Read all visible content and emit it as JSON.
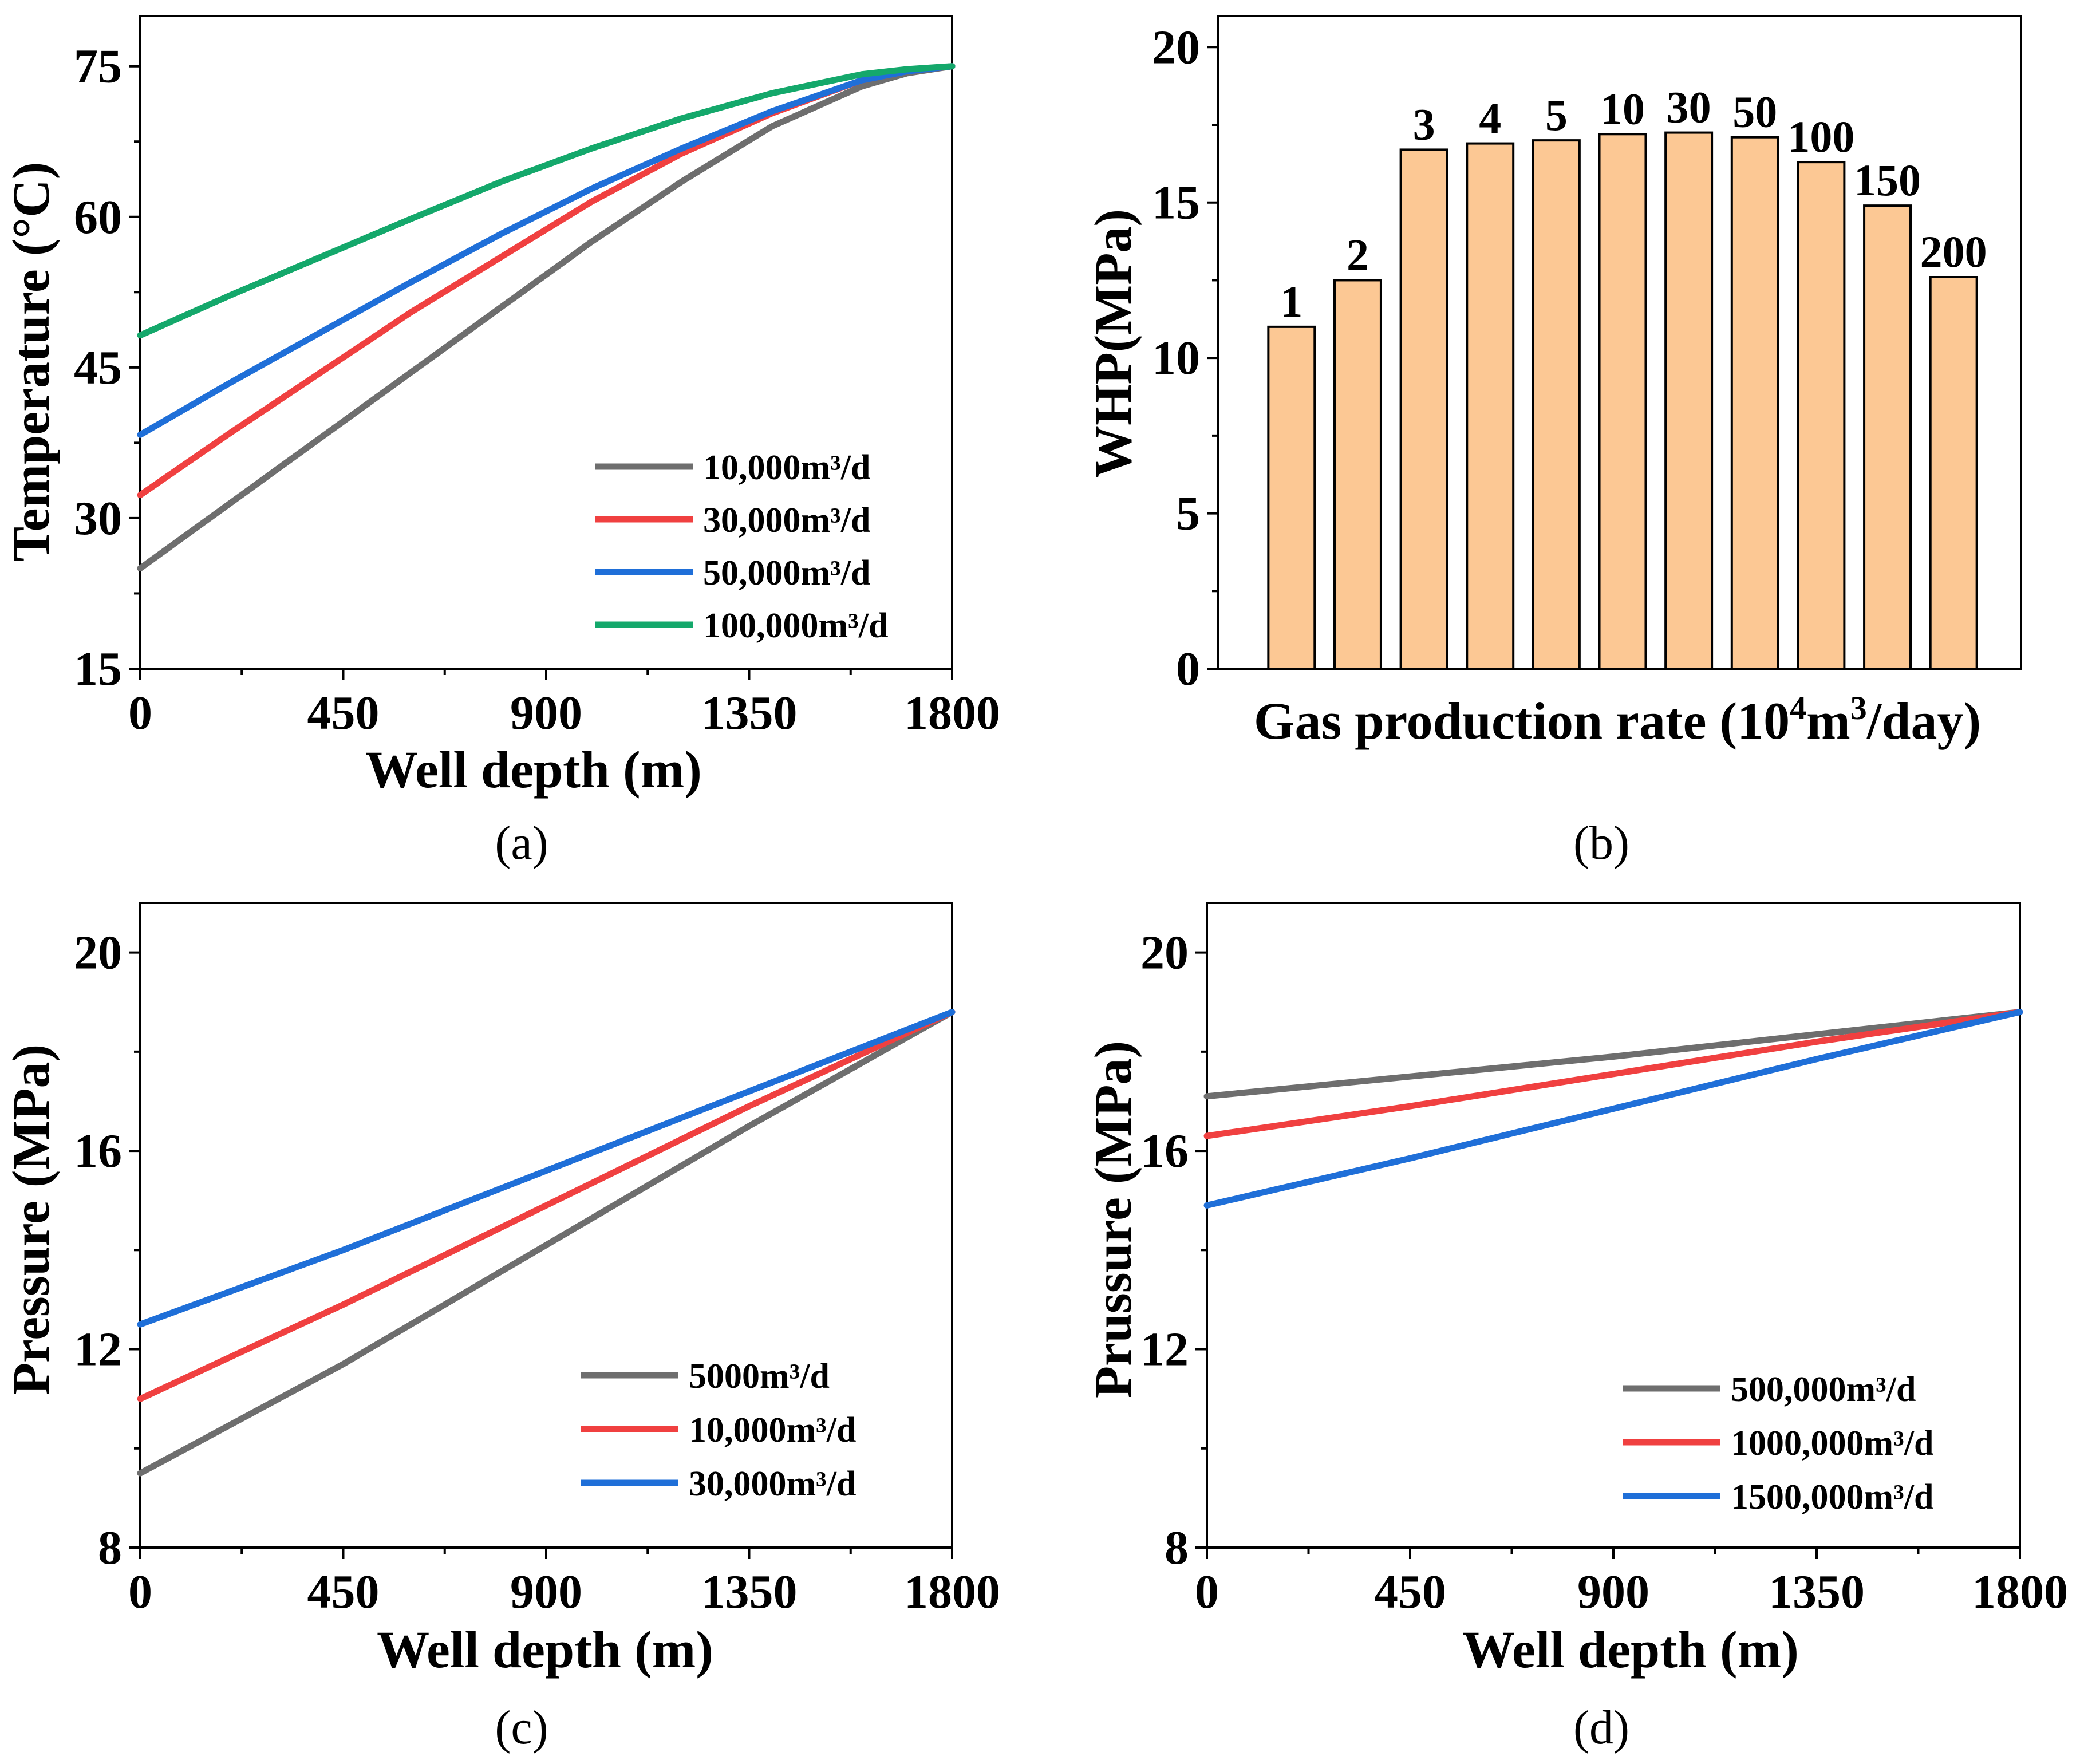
{
  "chart_data": [
    {
      "panel": "(a)",
      "type": "line",
      "xlabel": "Well depth (m)",
      "ylabel": "Temperature (°C)",
      "xlim": [
        0,
        1800
      ],
      "ylim": [
        15,
        80
      ],
      "xticks": [
        0,
        450,
        900,
        1350,
        1800
      ],
      "yticks": [
        15,
        30,
        45,
        60,
        75
      ],
      "legend_position": "bottom-right",
      "series": [
        {
          "name": "10,000m³/d",
          "color": "#6e6e6e",
          "x": [
            0,
            200,
            400,
            600,
            800,
            1000,
            1200,
            1400,
            1600,
            1700,
            1800
          ],
          "y": [
            25,
            31.5,
            38,
            44.5,
            51,
            57.5,
            63.5,
            69,
            73,
            74.3,
            75
          ]
        },
        {
          "name": "30,000m³/d",
          "color": "#f04040",
          "x": [
            0,
            200,
            400,
            600,
            800,
            1000,
            1200,
            1400,
            1600,
            1700,
            1800
          ],
          "y": [
            32.3,
            38.5,
            44.5,
            50.5,
            56,
            61.5,
            66.3,
            70.3,
            73.6,
            74.5,
            75
          ]
        },
        {
          "name": "50,000m³/d",
          "color": "#1f6fd8",
          "x": [
            0,
            200,
            400,
            600,
            800,
            1000,
            1200,
            1400,
            1600,
            1700,
            1800
          ],
          "y": [
            38.3,
            43.5,
            48.5,
            53.5,
            58.3,
            62.8,
            66.8,
            70.5,
            73.6,
            74.5,
            75
          ]
        },
        {
          "name": "100,000m³/d",
          "color": "#14a86b",
          "x": [
            0,
            200,
            400,
            600,
            800,
            1000,
            1200,
            1400,
            1600,
            1700,
            1800
          ],
          "y": [
            48.2,
            52.2,
            56,
            59.8,
            63.5,
            66.8,
            69.8,
            72.3,
            74.2,
            74.7,
            75
          ]
        }
      ]
    },
    {
      "panel": "(b)",
      "type": "bar",
      "xlabel": "Gas production rate (10",
      "xlabel_sup1": "4",
      "xlabel_mid": "m",
      "xlabel_sup2": "3",
      "xlabel_end": "/day)",
      "ylabel": "WHP(MPa)",
      "ylim": [
        0,
        21
      ],
      "yticks": [
        0,
        5,
        10,
        15,
        20
      ],
      "bar_color": "#fcc894",
      "categories": [
        "1",
        "2",
        "3",
        "4",
        "5",
        "10",
        "30",
        "50",
        "100",
        "150",
        "200"
      ],
      "values": [
        11.0,
        12.5,
        16.7,
        16.9,
        17.0,
        17.2,
        17.25,
        17.1,
        16.3,
        14.9,
        12.6
      ]
    },
    {
      "panel": "(c)",
      "type": "line",
      "xlabel": "Well depth (m)",
      "ylabel": "Pressure (MPa)",
      "xlim": [
        0,
        1800
      ],
      "ylim": [
        8,
        21
      ],
      "xticks": [
        0,
        450,
        900,
        1350,
        1800
      ],
      "yticks": [
        8,
        12,
        16,
        20
      ],
      "legend_position": "bottom-right",
      "series": [
        {
          "name": "5000m³/d",
          "color": "#6e6e6e",
          "x": [
            0,
            450,
            900,
            1350,
            1800
          ],
          "y": [
            9.5,
            11.7,
            14.1,
            16.5,
            18.8
          ]
        },
        {
          "name": "10,000m³/d",
          "color": "#f04040",
          "x": [
            0,
            450,
            900,
            1350,
            1800
          ],
          "y": [
            11.0,
            12.9,
            14.9,
            16.9,
            18.8
          ]
        },
        {
          "name": "30,000m³/d",
          "color": "#1f6fd8",
          "x": [
            0,
            450,
            900,
            1350,
            1800
          ],
          "y": [
            12.5,
            14.0,
            15.6,
            17.2,
            18.8
          ]
        }
      ]
    },
    {
      "panel": "(d)",
      "type": "line",
      "xlabel": "Well depth (m)",
      "ylabel": "Prussure (MPa)",
      "xlim": [
        0,
        1800
      ],
      "ylim": [
        8,
        21
      ],
      "xticks": [
        0,
        450,
        900,
        1350,
        1800
      ],
      "yticks": [
        8,
        12,
        16,
        20
      ],
      "legend_position": "bottom-right",
      "series": [
        {
          "name": "500,000m³/d",
          "color": "#6e6e6e",
          "x": [
            0,
            450,
            900,
            1350,
            1800
          ],
          "y": [
            17.1,
            17.5,
            17.9,
            18.35,
            18.8
          ]
        },
        {
          "name": "1000,000m³/d",
          "color": "#f04040",
          "x": [
            0,
            450,
            900,
            1350,
            1800
          ],
          "y": [
            16.3,
            16.9,
            17.55,
            18.2,
            18.8
          ]
        },
        {
          "name": "1500,000m³/d",
          "color": "#1f6fd8",
          "x": [
            0,
            450,
            900,
            1350,
            1800
          ],
          "y": [
            14.9,
            15.85,
            16.85,
            17.85,
            18.8
          ]
        }
      ]
    }
  ]
}
